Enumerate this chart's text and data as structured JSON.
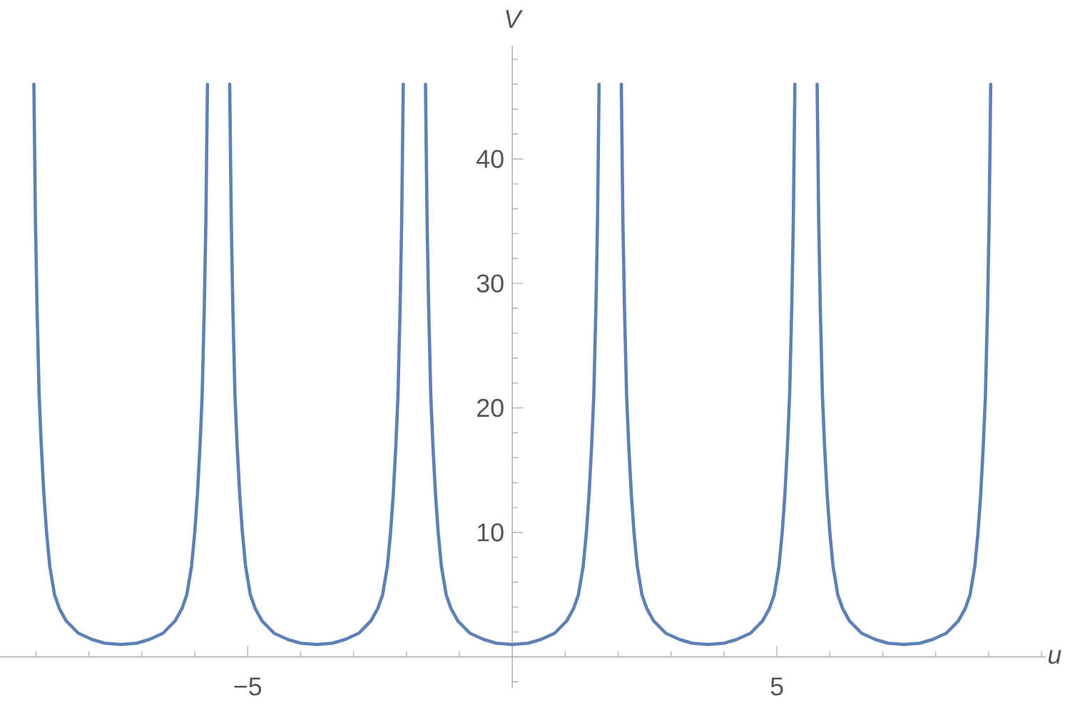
{
  "chart_data": {
    "type": "line",
    "xlabel": "u",
    "ylabel": "V",
    "color": "#5e81b5",
    "x": [
      -9.04,
      -9.01,
      -8.98,
      -8.94,
      -8.9,
      -8.85,
      -8.8,
      -8.74,
      -8.65,
      -8.56,
      -8.43,
      -8.2,
      -7.94,
      -7.7,
      -7.4,
      -7.1,
      -6.86,
      -6.6,
      -6.37,
      -6.24,
      -6.15,
      -6.06,
      -6.0,
      -5.95,
      -5.9,
      -5.86,
      -5.82,
      -5.79,
      -5.76,
      -5.55,
      -5.34,
      -5.31,
      -5.28,
      -5.24,
      -5.2,
      -5.15,
      -5.1,
      -5.04,
      -4.95,
      -4.86,
      -4.73,
      -4.5,
      -4.24,
      -4.0,
      -3.7,
      -3.4,
      -3.16,
      -2.9,
      -2.67,
      -2.54,
      -2.45,
      -2.36,
      -2.3,
      -2.25,
      -2.2,
      -2.16,
      -2.12,
      -2.09,
      -2.06,
      -1.85,
      -1.64,
      -1.61,
      -1.58,
      -1.54,
      -1.5,
      -1.45,
      -1.4,
      -1.34,
      -1.25,
      -1.16,
      -1.03,
      -0.8,
      -0.54,
      -0.3,
      0,
      0.3,
      0.54,
      0.8,
      1.03,
      1.16,
      1.25,
      1.34,
      1.4,
      1.45,
      1.5,
      1.54,
      1.58,
      1.61,
      1.64,
      1.85,
      2.06,
      2.09,
      2.12,
      2.16,
      2.2,
      2.25,
      2.3,
      2.36,
      2.45,
      2.54,
      2.67,
      2.9,
      3.16,
      3.4,
      3.7,
      4.0,
      4.24,
      4.5,
      4.73,
      4.86,
      4.95,
      5.04,
      5.1,
      5.15,
      5.2,
      5.24,
      5.28,
      5.31,
      5.34,
      5.55,
      5.76,
      5.79,
      5.82,
      5.86,
      5.9,
      5.95,
      6.0,
      6.06,
      6.15,
      6.24,
      6.37,
      6.6,
      6.86,
      7.1,
      7.4,
      7.7,
      7.94,
      8.2,
      8.43,
      8.56,
      8.65,
      8.74,
      8.8,
      8.85,
      8.9,
      8.94,
      8.98,
      9.01,
      9.04
    ],
    "values": [
      46,
      35,
      28,
      21,
      17,
      13,
      10,
      7.3,
      5.0,
      3.9,
      2.9,
      1.9,
      1.4,
      1.1,
      1.0,
      1.1,
      1.4,
      1.9,
      2.9,
      3.9,
      5.0,
      7.3,
      10,
      13,
      17,
      21,
      28,
      35,
      46,
      null,
      46,
      35,
      28,
      21,
      17,
      13,
      10,
      7.3,
      5.0,
      3.9,
      2.9,
      1.9,
      1.4,
      1.1,
      1.0,
      1.1,
      1.4,
      1.9,
      2.9,
      3.9,
      5.0,
      7.3,
      10,
      13,
      17,
      21,
      28,
      35,
      46,
      null,
      46,
      35,
      28,
      21,
      17,
      13,
      10,
      7.3,
      5.0,
      3.9,
      2.9,
      1.9,
      1.4,
      1.1,
      1.0,
      1.1,
      1.4,
      1.9,
      2.9,
      3.9,
      5.0,
      7.3,
      10,
      13,
      17,
      21,
      28,
      35,
      46,
      null,
      46,
      35,
      28,
      21,
      17,
      13,
      10,
      7.3,
      5.0,
      3.9,
      2.9,
      1.9,
      1.4,
      1.1,
      1.0,
      1.1,
      1.4,
      1.9,
      2.9,
      3.9,
      5.0,
      7.3,
      10,
      13,
      17,
      21,
      28,
      35,
      46,
      null,
      46,
      35,
      28,
      21,
      17,
      13,
      10,
      7.3,
      5.0,
      3.9,
      2.9,
      1.9,
      1.4,
      1.1,
      1.0,
      1.1,
      1.4,
      1.9,
      2.9,
      3.9,
      5.0,
      7.3,
      10,
      13,
      17,
      21,
      28,
      35,
      46
    ],
    "xlim": [
      -9.68,
      10.08
    ],
    "ylim": [
      -2.5,
      49.1
    ],
    "xticks": [
      {
        "value": -9,
        "label": null
      },
      {
        "value": -8,
        "label": null
      },
      {
        "value": -7,
        "label": null
      },
      {
        "value": -6,
        "label": null
      },
      {
        "value": -5,
        "label": "−5"
      },
      {
        "value": -4,
        "label": null
      },
      {
        "value": -3,
        "label": null
      },
      {
        "value": -2,
        "label": null
      },
      {
        "value": -1,
        "label": null
      },
      {
        "value": 1,
        "label": null
      },
      {
        "value": 2,
        "label": null
      },
      {
        "value": 3,
        "label": null
      },
      {
        "value": 4,
        "label": null
      },
      5,
      {
        "value": 6,
        "label": null
      },
      {
        "value": 7,
        "label": null
      },
      {
        "value": 8,
        "label": null
      },
      {
        "value": 9,
        "label": null
      },
      {
        "value": 10,
        "label": null
      }
    ],
    "yticks": [
      {
        "value": -2,
        "label": null
      },
      {
        "value": 2,
        "label": null
      },
      {
        "value": 4,
        "label": null
      },
      {
        "value": 6,
        "label": null
      },
      {
        "value": 8,
        "label": null
      },
      10,
      {
        "value": 12,
        "label": null
      },
      {
        "value": 14,
        "label": null
      },
      {
        "value": 16,
        "label": null
      },
      {
        "value": 18,
        "label": null
      },
      20,
      {
        "value": 22,
        "label": null
      },
      {
        "value": 24,
        "label": null
      },
      {
        "value": 26,
        "label": null
      },
      {
        "value": 28,
        "label": null
      },
      30,
      {
        "value": 32,
        "label": null
      },
      {
        "value": 34,
        "label": null
      },
      {
        "value": 36,
        "label": null
      },
      {
        "value": 38,
        "label": null
      },
      40,
      {
        "value": 42,
        "label": null
      },
      {
        "value": 44,
        "label": null
      },
      {
        "value": 46,
        "label": null
      },
      {
        "value": 48,
        "label": null
      }
    ]
  }
}
